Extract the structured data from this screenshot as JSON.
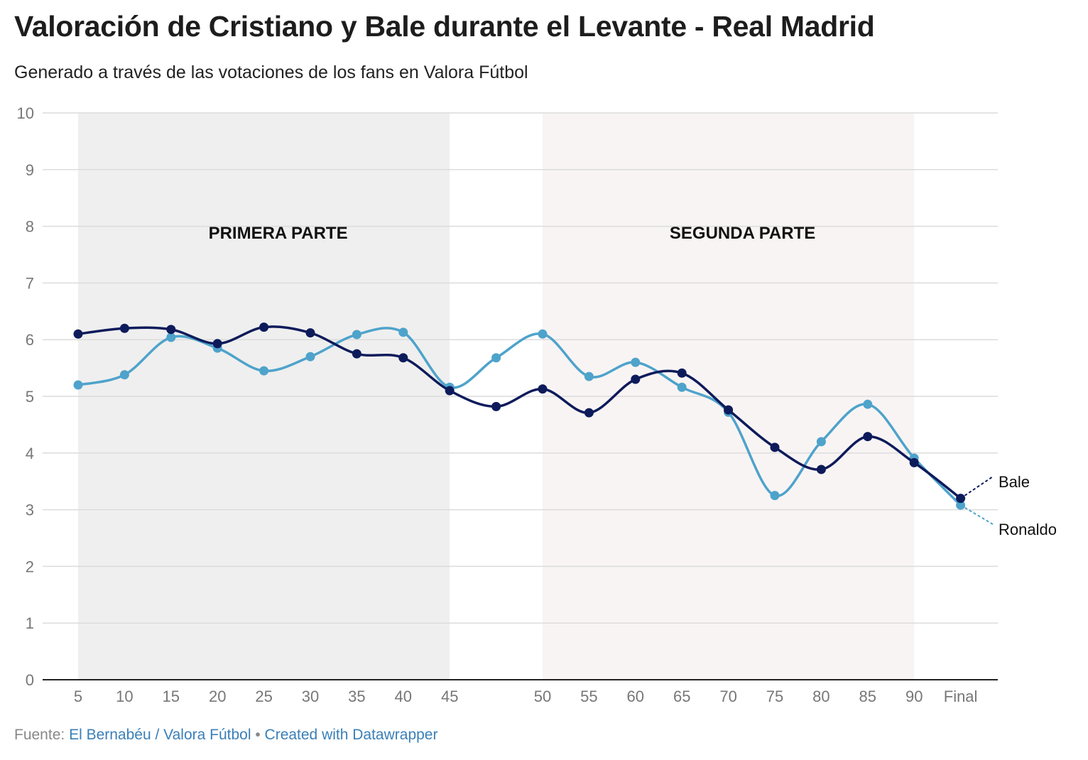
{
  "chart_data": {
    "type": "line",
    "title": "Valoración de Cristiano y Bale durante el Levante - Real Madrid",
    "subtitle": "Generado a través de las votaciones de los fans en Valora Fútbol",
    "xlabel": "",
    "ylabel": "",
    "categories": [
      "5",
      "10",
      "15",
      "20",
      "25",
      "30",
      "35",
      "40",
      "45",
      "",
      "50",
      "55",
      "60",
      "65",
      "70",
      "75",
      "80",
      "85",
      "90",
      "Final"
    ],
    "ylim": [
      0,
      10
    ],
    "yticks": [
      "0",
      "1",
      "2",
      "3",
      "4",
      "5",
      "6",
      "7",
      "8",
      "9",
      "10"
    ],
    "grid": true,
    "legend": "direct labels at line ends (right)",
    "series": [
      {
        "name": "Bale",
        "color": "#0e1b5b",
        "values": [
          6.1,
          6.2,
          6.18,
          5.93,
          6.22,
          6.12,
          5.75,
          5.68,
          5.1,
          4.82,
          5.13,
          4.71,
          5.3,
          5.41,
          4.76,
          4.1,
          3.71,
          4.29,
          3.83,
          3.2
        ]
      },
      {
        "name": "Ronaldo",
        "color": "#4ea3cb",
        "values": [
          5.2,
          5.38,
          6.04,
          5.85,
          5.45,
          5.7,
          6.09,
          6.13,
          5.16,
          5.68,
          6.1,
          5.35,
          5.6,
          5.16,
          4.72,
          3.25,
          4.2,
          4.86,
          3.91,
          3.08
        ]
      }
    ],
    "annotations": [
      {
        "label": "PRIMERA PARTE",
        "from": "5",
        "to": "45",
        "shade": "#efefef"
      },
      {
        "label": "SEGUNDA PARTE",
        "from": "50",
        "to": "90",
        "shade": "#f9f4f4"
      }
    ]
  },
  "footer": {
    "source_prefix": "Fuente: ",
    "source_link": "El Bernabéu / Valora Fútbol",
    "separator": " • ",
    "credit_link": "Created with Datawrapper"
  }
}
